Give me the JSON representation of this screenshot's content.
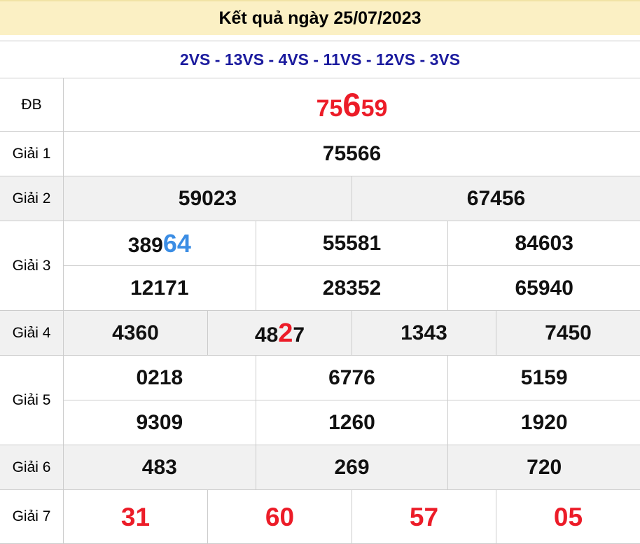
{
  "header": {
    "title": "Kết quả ngày 25/07/2023"
  },
  "subheader": {
    "text": "2VS - 13VS - 4VS - 11VS - 12VS - 3VS"
  },
  "colors": {
    "title_bg": "#fbf0c4",
    "vs_text": "#1b1b9e",
    "special_red": "#ec1c28",
    "highlight_blue": "#3b8de4",
    "row_gray_bg": "#f1f1f1",
    "border": "#cccccc",
    "number_black": "#111111"
  },
  "table": {
    "rows": [
      {
        "label": "ĐB",
        "cells": [
          {
            "prefix": "75",
            "highlight": "6",
            "suffix": "59"
          }
        ]
      },
      {
        "label": "Giải 1",
        "cells": [
          {
            "text": "75566"
          }
        ]
      },
      {
        "label": "Giải 2",
        "cells": [
          {
            "text": "59023"
          },
          {
            "text": "67456"
          }
        ]
      },
      {
        "label": "Giải 3",
        "subrows": [
          {
            "cells": [
              {
                "prefix": "389",
                "highlight": "64",
                "suffix": ""
              },
              {
                "text": "55581"
              },
              {
                "text": "84603"
              }
            ]
          },
          {
            "cells": [
              {
                "text": "12171"
              },
              {
                "text": "28352"
              },
              {
                "text": "65940"
              }
            ]
          }
        ]
      },
      {
        "label": "Giải 4",
        "cells": [
          {
            "text": "4360"
          },
          {
            "prefix": "48",
            "highlight": "2",
            "suffix": "7"
          },
          {
            "text": "1343"
          },
          {
            "text": "7450"
          }
        ]
      },
      {
        "label": "Giải 5",
        "subrows": [
          {
            "cells": [
              {
                "text": "0218"
              },
              {
                "text": "6776"
              },
              {
                "text": "5159"
              }
            ]
          },
          {
            "cells": [
              {
                "text": "9309"
              },
              {
                "text": "1260"
              },
              {
                "text": "1920"
              }
            ]
          }
        ]
      },
      {
        "label": "Giải 6",
        "cells": [
          {
            "text": "483"
          },
          {
            "text": "269"
          },
          {
            "text": "720"
          }
        ]
      },
      {
        "label": "Giải 7",
        "cells": [
          {
            "text": "31"
          },
          {
            "text": "60"
          },
          {
            "text": "57"
          },
          {
            "text": "05"
          }
        ]
      }
    ]
  }
}
